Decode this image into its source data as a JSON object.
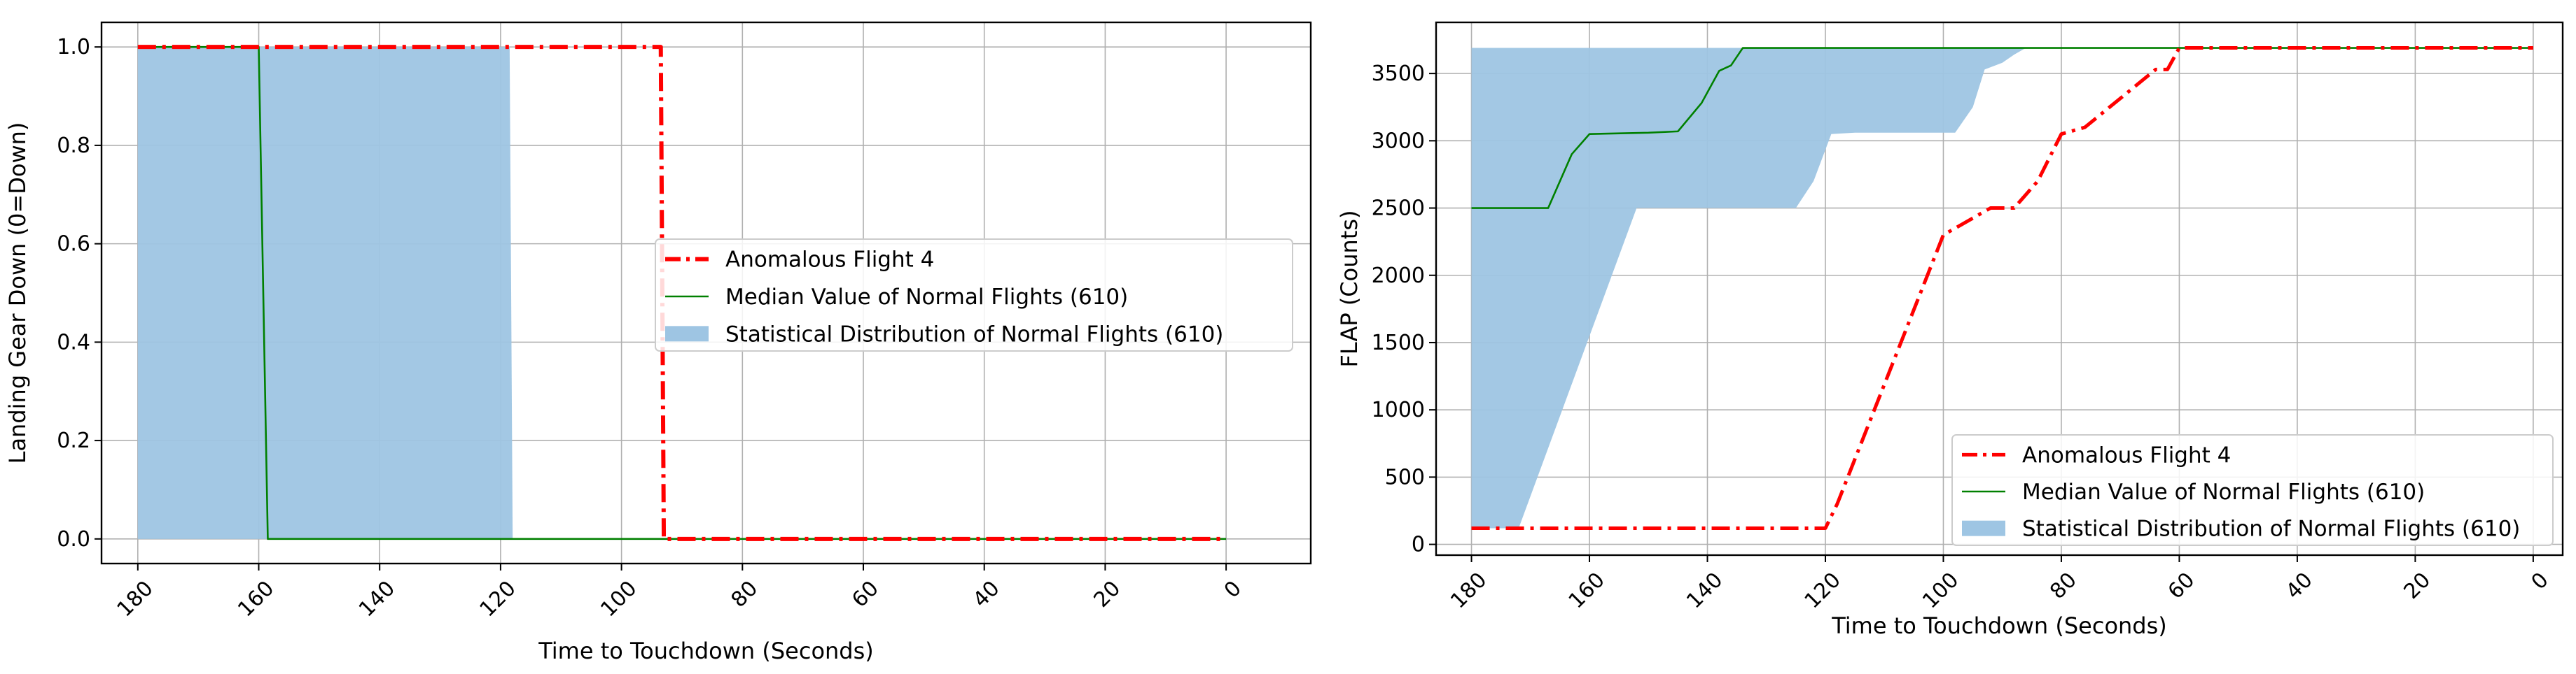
{
  "chart_data": [
    {
      "type": "line",
      "title": "",
      "xlabel": "Time to Touchdown (Seconds)",
      "ylabel": "Landing Gear Down (0=Down)",
      "xlim": [
        186,
        -14
      ],
      "ylim": [
        -0.05,
        1.05
      ],
      "x_inverted": true,
      "grid": true,
      "legend_position": "center-right",
      "xticks": [
        180,
        160,
        140,
        120,
        100,
        80,
        60,
        40,
        20,
        0
      ],
      "xtick_labels": [
        "180",
        "160",
        "140",
        "120",
        "100",
        "80",
        "60",
        "40",
        "20",
        "0"
      ],
      "yticks": [
        0.0,
        0.2,
        0.4,
        0.6,
        0.8,
        1.0
      ],
      "ytick_labels": [
        "0.0",
        "0.2",
        "0.4",
        "0.6",
        "0.8",
        "1.0"
      ],
      "series": [
        {
          "name": "Anomalous Flight 4",
          "kind": "line",
          "style": "dashdot",
          "color": "#ff0000",
          "x": [
            180,
            93.5,
            93,
            0
          ],
          "y": [
            1,
            1,
            0,
            0
          ]
        },
        {
          "name": "Median Value of Normal Flights (610)",
          "kind": "line",
          "style": "solid",
          "color": "#008000",
          "x": [
            180,
            160,
            158.5,
            0
          ],
          "y": [
            1,
            1,
            0,
            0
          ]
        },
        {
          "name": "Statistical Distribution of Normal Flights (610)",
          "kind": "band",
          "color": "#9ec5e3",
          "x": [
            180,
            118.5,
            118
          ],
          "lower": [
            0,
            0,
            0
          ],
          "upper": [
            1,
            1,
            0
          ]
        }
      ]
    },
    {
      "type": "line",
      "title": "",
      "xlabel": "Time to Touchdown (Seconds)",
      "ylabel": "FLAP (Counts)",
      "xlim": [
        186,
        -5
      ],
      "ylim": [
        -80,
        3880
      ],
      "x_inverted": true,
      "grid": true,
      "legend_position": "lower-right",
      "xticks": [
        180,
        160,
        140,
        120,
        100,
        80,
        60,
        40,
        20,
        0
      ],
      "xtick_labels": [
        "180",
        "160",
        "140",
        "120",
        "100",
        "80",
        "60",
        "40",
        "20",
        "0"
      ],
      "yticks": [
        0,
        500,
        1000,
        1500,
        2000,
        2500,
        3000,
        3500
      ],
      "ytick_labels": [
        "0",
        "500",
        "1000",
        "1500",
        "2000",
        "2500",
        "3000",
        "3500"
      ],
      "series": [
        {
          "name": "Anomalous Flight 4",
          "kind": "line",
          "style": "dashdot",
          "color": "#ff0000",
          "x": [
            180,
            120,
            118,
            100,
            92,
            88,
            84,
            80,
            76,
            64,
            62,
            60,
            0
          ],
          "y": [
            120,
            120,
            300,
            2300,
            2500,
            2500,
            2700,
            3050,
            3100,
            3530,
            3530,
            3690,
            3690
          ]
        },
        {
          "name": "Median Value of Normal Flights (610)",
          "kind": "line",
          "style": "solid",
          "color": "#008000",
          "x": [
            180,
            167,
            163,
            160,
            150,
            145,
            141,
            138,
            136,
            134,
            0
          ],
          "y": [
            2500,
            2500,
            2900,
            3050,
            3060,
            3070,
            3280,
            3520,
            3560,
            3690,
            3690
          ]
        },
        {
          "name": "Statistical Distribution of Normal Flights (610)",
          "kind": "band",
          "color": "#9ec5e3",
          "x": [
            180,
            172,
            152,
            125,
            122,
            119,
            115,
            98,
            95,
            93,
            90,
            88,
            86,
            84
          ],
          "lower": [
            120,
            120,
            2500,
            2500,
            2700,
            3050,
            3060,
            3060,
            3250,
            3530,
            3580,
            3640,
            3690,
            3690
          ],
          "upper": [
            3690,
            3690,
            3690,
            3690,
            3690,
            3690,
            3690,
            3690,
            3690,
            3690,
            3690,
            3690,
            3690,
            3690
          ]
        }
      ]
    }
  ]
}
